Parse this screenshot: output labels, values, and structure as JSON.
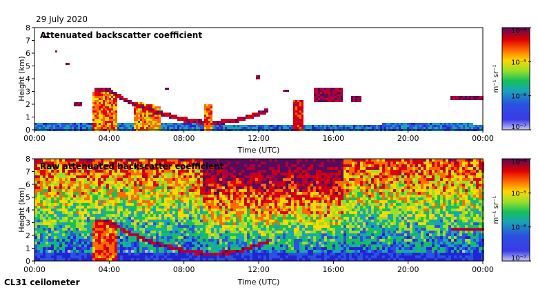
{
  "header": {
    "date": "29 July 2020",
    "instrument": "CL31 ceilometer"
  },
  "colorbar": {
    "unit_label": "m⁻¹ sr⁻¹",
    "ticks": [
      "10⁻⁴",
      "10⁻⁵",
      "10⁻⁶",
      "10⁻⁷"
    ],
    "tick_values": [
      0.0001,
      1e-05,
      1e-06,
      1e-07
    ],
    "scale": "log",
    "colormap": [
      "#5a0a5a",
      "#b0003c",
      "#e00000",
      "#ff6a00",
      "#ffd800",
      "#9adf2a",
      "#17c05a",
      "#19a3b8",
      "#2a52e0",
      "#2323d6",
      "#b8b8ee"
    ]
  },
  "chart_data": [
    {
      "type": "heatmap",
      "title": "Attenuated backscatter coefficient",
      "xlabel": "Time (UTC)",
      "ylabel": "Height (km)",
      "x_ticks": [
        "00:00",
        "04:00",
        "08:00",
        "12:00",
        "16:00",
        "20:00",
        "00:00"
      ],
      "x_tick_hours": [
        0,
        4,
        8,
        12,
        16,
        20,
        24
      ],
      "xlim_hours": [
        0,
        24
      ],
      "y_ticks": [
        "0",
        "1",
        "2",
        "3",
        "4",
        "5",
        "6",
        "7",
        "8"
      ],
      "ylim": [
        0,
        8
      ],
      "grid": false,
      "features": {
        "boundary_layer_top_km": [
          [
            0,
            0.55
          ],
          [
            3,
            0.6
          ],
          [
            6,
            0.5
          ],
          [
            10,
            0.45
          ],
          [
            14,
            0.4
          ],
          [
            18,
            0.45
          ],
          [
            21,
            0.5
          ],
          [
            24,
            0.45
          ]
        ],
        "elevated_layer_km": [
          [
            3.2,
            3.2
          ],
          [
            4.0,
            3.1
          ],
          [
            5.0,
            2.2
          ],
          [
            6.5,
            1.4
          ],
          [
            8.0,
            0.8
          ],
          [
            9.5,
            0.5
          ],
          [
            11.0,
            0.8
          ],
          [
            12.5,
            1.5
          ]
        ],
        "high_clouds": [
          {
            "t": [
              0.4,
              0.8
            ],
            "h": [
              7.2,
              7.4
            ]
          },
          {
            "t": [
              1.1,
              1.25
            ],
            "h": [
              6.0,
              6.2
            ]
          },
          {
            "t": [
              1.7,
              1.85
            ],
            "h": [
              5.1,
              5.3
            ]
          },
          {
            "t": [
              2.1,
              2.6
            ],
            "h": [
              1.9,
              2.2
            ]
          },
          {
            "t": [
              7.0,
              7.2
            ],
            "h": [
              3.1,
              3.3
            ]
          },
          {
            "t": [
              11.9,
              12.1
            ],
            "h": [
              4.0,
              4.2
            ]
          },
          {
            "t": [
              13.3,
              13.6
            ],
            "h": [
              3.0,
              3.2
            ]
          },
          {
            "t": [
              15.0,
              16.5
            ],
            "h": [
              2.2,
              3.3
            ]
          },
          {
            "t": [
              17.0,
              17.5
            ],
            "h": [
              2.2,
              2.6
            ]
          },
          {
            "t": [
              22.3,
              24.0
            ],
            "h": [
              2.3,
              2.6
            ]
          }
        ]
      }
    },
    {
      "type": "heatmap",
      "title": "Raw attenuated backscatter coefficient",
      "xlabel": "Time (UTC)",
      "ylabel": "Height (km)",
      "x_ticks": [
        "00:00",
        "04:00",
        "08:00",
        "12:00",
        "16:00",
        "20:00",
        "00:00"
      ],
      "x_tick_hours": [
        0,
        4,
        8,
        12,
        16,
        20,
        24
      ],
      "xlim_hours": [
        0,
        24
      ],
      "y_ticks": [
        "0",
        "1",
        "2",
        "3",
        "4",
        "5",
        "6",
        "7",
        "8"
      ],
      "ylim": [
        0,
        8
      ],
      "grid": false
    }
  ]
}
